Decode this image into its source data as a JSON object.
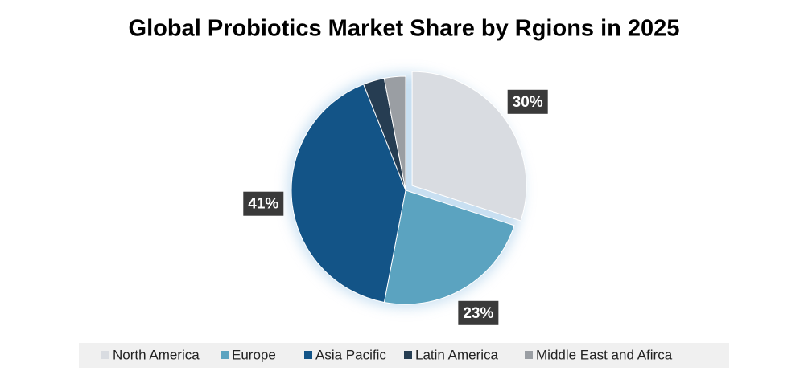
{
  "chart_data": {
    "type": "pie",
    "title": "Global Probiotics Market Share by Rgions in 2025",
    "categories": [
      "North America",
      "Europe",
      "Asia Pacific",
      "Latin America",
      "Middle East and Afirca"
    ],
    "values": [
      30,
      23,
      41,
      3,
      3
    ],
    "value_labels": [
      "30%",
      "23%",
      "41%",
      null,
      null
    ],
    "colors": [
      "#d9dce1",
      "#5ba3c0",
      "#135487",
      "#263d52",
      "#9a9ea3"
    ],
    "exploded": [
      true,
      false,
      false,
      false,
      false
    ],
    "legend": "bottom"
  }
}
